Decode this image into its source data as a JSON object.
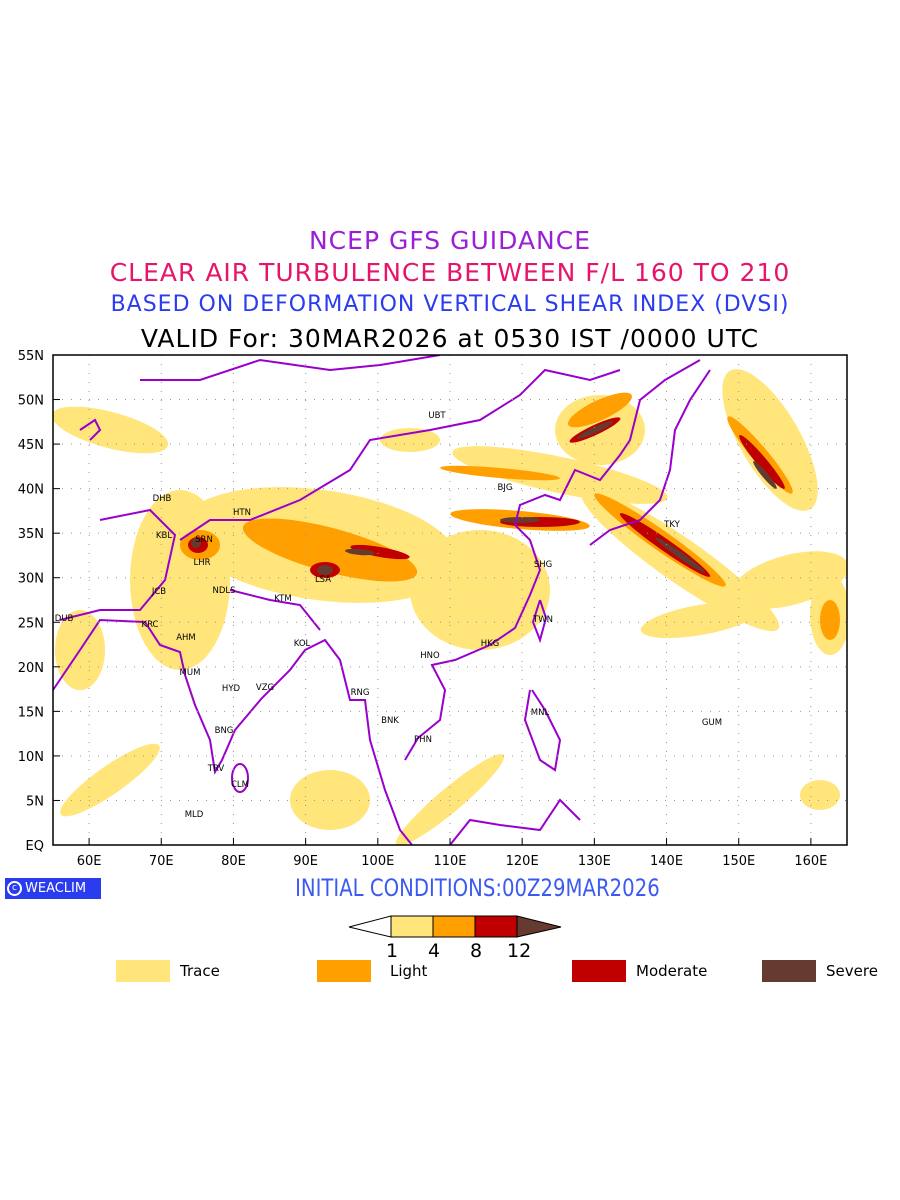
{
  "header": {
    "title": "NCEP GFS GUIDANCE",
    "subtitle": "CLEAR AIR TURBULENCE BETWEEN F/L 160 TO 210",
    "index_line": "BASED ON DEFORMATION VERTICAL SHEAR INDEX (DVSI)",
    "valid_line": "VALID For: 30MAR2026 at 0530 IST /0000 UTC"
  },
  "map": {
    "lat_labels": [
      "55N",
      "50N",
      "45N",
      "40N",
      "35N",
      "30N",
      "25N",
      "20N",
      "15N",
      "10N",
      "5N",
      "EQ"
    ],
    "lon_labels": [
      "60E",
      "70E",
      "80E",
      "90E",
      "100E",
      "110E",
      "120E",
      "130E",
      "140E",
      "150E",
      "160E"
    ],
    "cities": [
      "UBT",
      "BJG",
      "DHB",
      "HTN",
      "KBL",
      "SRN",
      "LHR",
      "JCB",
      "NDLS",
      "KTM",
      "LSA",
      "SHG",
      "DUB",
      "KRC",
      "AHM",
      "KOL",
      "TWN",
      "HKG",
      "HNO",
      "MUM",
      "HYD",
      "VZG",
      "RNG",
      "BNK",
      "PHN",
      "MNL",
      "GUM",
      "BNG",
      "TRV",
      "CLM",
      "MLD",
      "TKY"
    ],
    "colors": {
      "trace": "#ffe57a",
      "light": "#ffa000",
      "moderate": "#c00000",
      "severe": "#653b30",
      "boundary": "#9900cc"
    }
  },
  "footer": {
    "logo": "WEACLIM",
    "initial_conditions": "INITIAL CONDITIONS:00Z29MAR2026",
    "colorbar_ticks": [
      "1",
      "4",
      "8",
      "12"
    ],
    "legend": [
      {
        "label": "Trace",
        "color": "#ffe57a"
      },
      {
        "label": "Light",
        "color": "#ffa000"
      },
      {
        "label": "Moderate",
        "color": "#c00000"
      },
      {
        "label": "Severe",
        "color": "#653b30"
      }
    ]
  }
}
